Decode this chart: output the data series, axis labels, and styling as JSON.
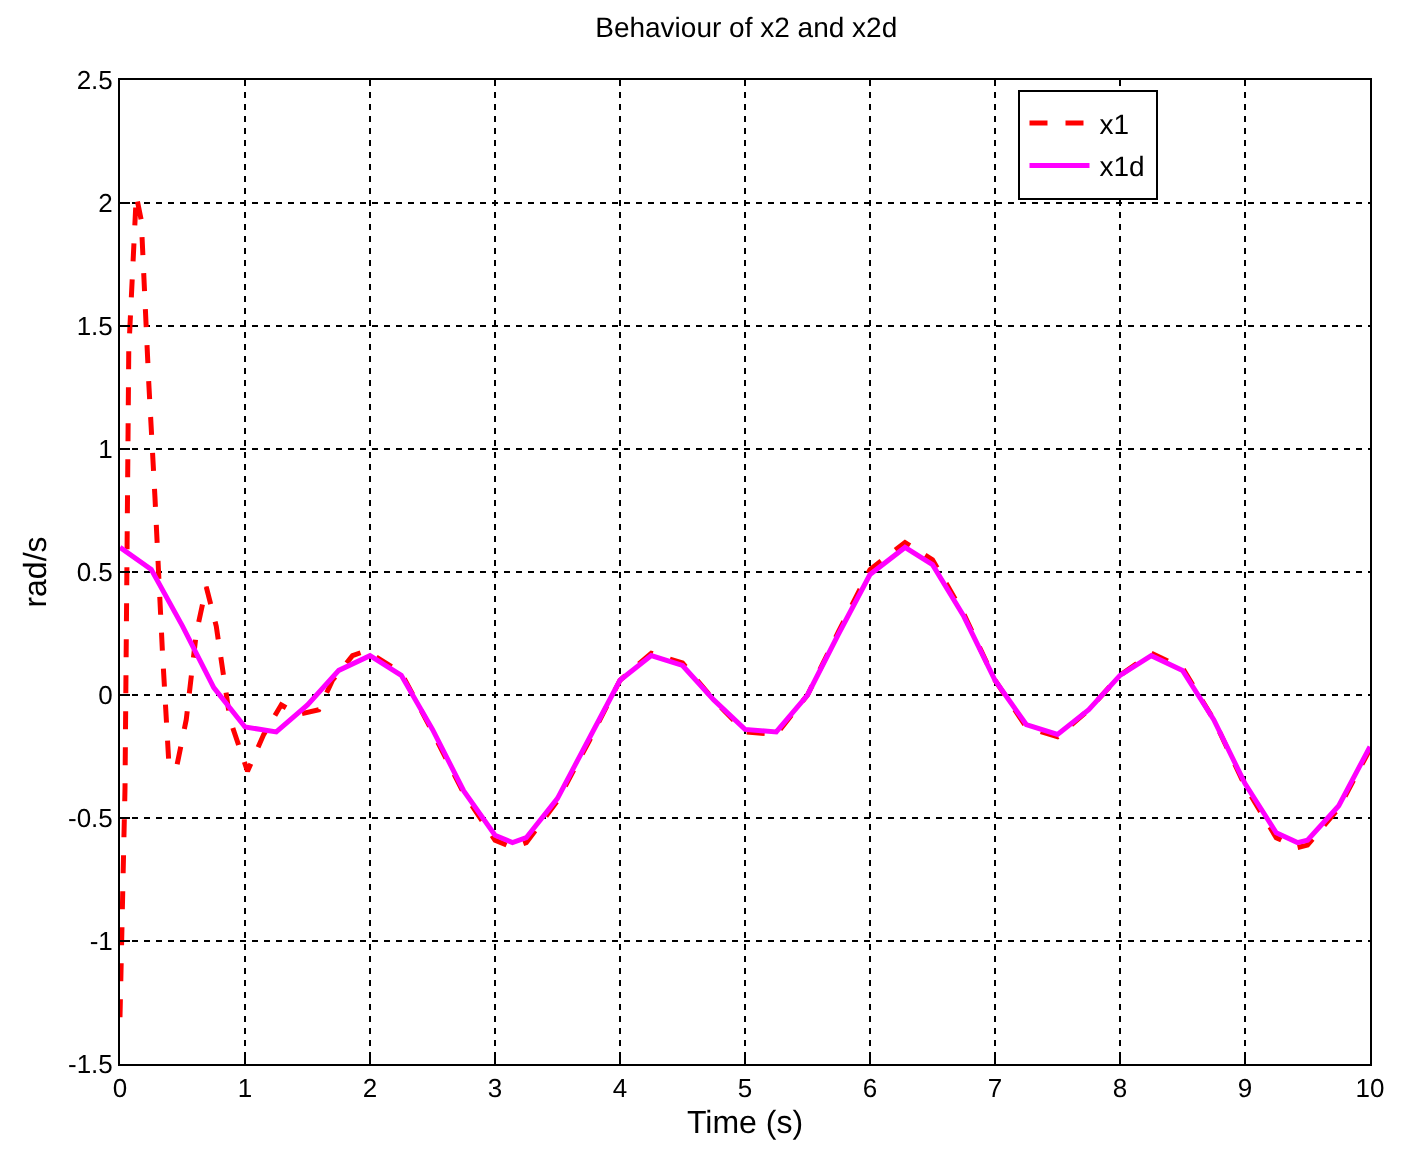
{
  "chart_data": {
    "type": "line",
    "title": "Behaviour of x2 and x2d",
    "xlabel": "Time (s)",
    "ylabel": "rad/s",
    "xlim": [
      0,
      10
    ],
    "xticks": [
      0,
      1,
      2,
      3,
      4,
      5,
      6,
      7,
      8,
      9,
      10
    ],
    "ylim": [
      -1.5,
      2.5
    ],
    "yticks": [
      -1.5,
      -1,
      -0.5,
      0,
      0.5,
      1,
      1.5,
      2,
      2.5
    ],
    "grid": true,
    "legend": "top right",
    "marker": "none",
    "series": [
      {
        "name": "x1",
        "color": "#ff0000",
        "line_style": "dashed",
        "x": [
          0,
          0.04,
          0.07,
          0.13,
          0.17,
          0.23,
          0.28,
          0.34,
          0.39,
          0.45,
          0.53,
          0.61,
          0.69,
          0.77,
          0.88,
          1.02,
          1.15,
          1.29,
          1.42,
          1.59,
          1.7,
          1.86,
          1.97,
          2.25,
          2.5,
          2.75,
          3,
          3.14,
          3.25,
          3.5,
          3.75,
          4,
          4.25,
          4.5,
          4.75,
          5,
          5.25,
          5.5,
          5.75,
          6,
          6.28,
          6.5,
          6.75,
          7,
          7.25,
          7.5,
          7.75,
          8,
          8.25,
          8.5,
          8.75,
          9,
          9.25,
          9.42,
          9.5,
          9.75,
          10
        ],
        "values": [
          -1.31,
          -0.38,
          1.4,
          2.03,
          1.93,
          1.27,
          0.8,
          0.17,
          -0.27,
          -0.3,
          -0.1,
          0.25,
          0.44,
          0.28,
          -0.1,
          -0.31,
          -0.16,
          -0.04,
          -0.08,
          -0.06,
          0.06,
          0.16,
          0.18,
          0.09,
          -0.15,
          -0.4,
          -0.59,
          -0.62,
          -0.6,
          -0.43,
          -0.19,
          0.06,
          0.17,
          0.13,
          -0.02,
          -0.15,
          -0.16,
          0,
          0.26,
          0.51,
          0.62,
          0.55,
          0.33,
          0.06,
          -0.13,
          -0.17,
          -0.06,
          0.08,
          0.17,
          0.11,
          -0.1,
          -0.37,
          -0.58,
          -0.62,
          -0.61,
          -0.46,
          -0.22
        ]
      },
      {
        "name": "x1d",
        "color": "#ff00ff",
        "line_style": "solid",
        "x": [
          0,
          0.25,
          0.5,
          0.75,
          1,
          1.25,
          1.5,
          1.75,
          2,
          2.25,
          2.5,
          2.75,
          3,
          3.14,
          3.25,
          3.5,
          3.75,
          4,
          4.25,
          4.5,
          4.75,
          5,
          5.25,
          5.5,
          5.75,
          6,
          6.28,
          6.5,
          6.75,
          7,
          7.25,
          7.5,
          7.75,
          8,
          8.25,
          8.5,
          8.75,
          9,
          9.25,
          9.42,
          9.5,
          9.75,
          10
        ],
        "values": [
          0.6,
          0.51,
          0.28,
          0.03,
          -0.13,
          -0.15,
          -0.04,
          0.1,
          0.16,
          0.08,
          -0.14,
          -0.39,
          -0.57,
          -0.6,
          -0.58,
          -0.42,
          -0.18,
          0.06,
          0.16,
          0.12,
          -0.02,
          -0.14,
          -0.15,
          0,
          0.25,
          0.49,
          0.6,
          0.53,
          0.32,
          0.06,
          -0.12,
          -0.16,
          -0.06,
          0.08,
          0.16,
          0.1,
          -0.1,
          -0.36,
          -0.56,
          -0.6,
          -0.59,
          -0.45,
          -0.21
        ]
      }
    ]
  }
}
